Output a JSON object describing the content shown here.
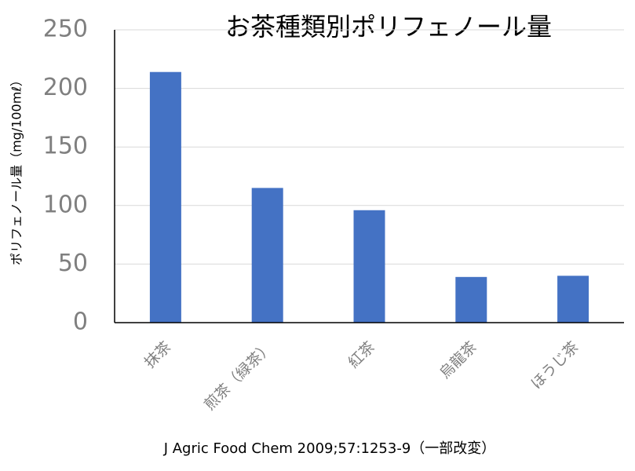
{
  "chart_data": {
    "type": "bar",
    "title": "お茶種類別ポリフェノール量",
    "y_label": "ポリフェノール量（mg/100mℓ）",
    "note": "J Agric Food Chem 2009;57:1253-9（一部改変）",
    "categories": [
      "抹茶",
      "煎茶（緑茶）",
      "紅茶",
      "烏龍茶",
      "ほうじ茶"
    ],
    "values": [
      214,
      115,
      96,
      39,
      40
    ],
    "color": "#4472c4",
    "ylim": [
      0,
      250
    ],
    "yticks": [
      0,
      50,
      100,
      150,
      200,
      250
    ],
    "grid": true
  }
}
